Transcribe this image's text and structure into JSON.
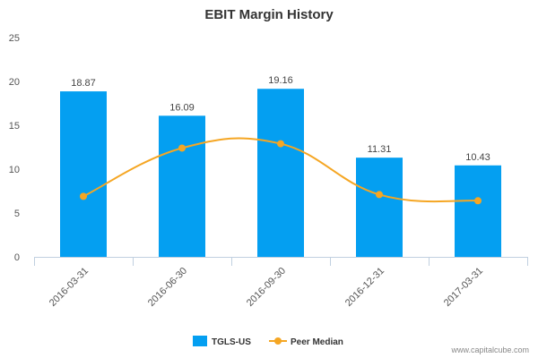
{
  "chart_data": {
    "type": "bar",
    "title": "EBIT Margin History",
    "categories": [
      "2016-03-31",
      "2016-06-30",
      "2016-09-30",
      "2016-12-31",
      "2017-03-31"
    ],
    "ylim": [
      0,
      25
    ],
    "yticks": [
      "0",
      "5",
      "10",
      "15",
      "20",
      "25"
    ],
    "grid": false,
    "legend_position": "bottom-center",
    "series": [
      {
        "name": "TGLS-US",
        "type": "bar",
        "color": "#049FF1",
        "values": [
          18.87,
          16.09,
          19.16,
          11.31,
          10.43
        ],
        "labels": [
          "18.87",
          "16.09",
          "19.16",
          "11.31",
          "10.43"
        ]
      },
      {
        "name": "Peer Median",
        "type": "line",
        "color": "#F5A623",
        "values": [
          6.9,
          12.4,
          12.9,
          7.1,
          6.4
        ]
      }
    ]
  },
  "footer": {
    "credit": "www.capitalcube.com"
  }
}
